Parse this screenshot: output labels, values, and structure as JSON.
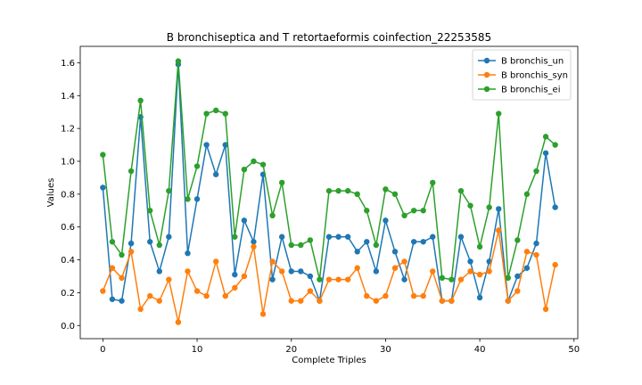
{
  "chart_data": {
    "type": "line",
    "title": "B bronchiseptica and T retortaeformis coinfection_22253585",
    "xlabel": "Complete Triples",
    "ylabel": "Values",
    "xlim": [
      -2.4,
      50.4
    ],
    "ylim": [
      -0.08,
      1.7
    ],
    "xticks": [
      0,
      10,
      20,
      30,
      40,
      50
    ],
    "yticks": [
      0.0,
      0.2,
      0.4,
      0.6,
      0.8,
      1.0,
      1.2,
      1.4,
      1.6
    ],
    "legend_position": "top-right",
    "grid": false,
    "series": [
      {
        "name": "B bronchis_un",
        "color": "#1f77b4",
        "values": [
          0.84,
          0.16,
          0.15,
          0.5,
          1.27,
          0.51,
          0.33,
          0.54,
          1.59,
          0.44,
          0.77,
          1.1,
          0.92,
          1.1,
          0.31,
          0.64,
          0.51,
          0.92,
          0.28,
          0.54,
          0.33,
          0.33,
          0.3,
          0.15,
          0.54,
          0.54,
          0.54,
          0.45,
          0.51,
          0.33,
          0.64,
          0.45,
          0.28,
          0.51,
          0.51,
          0.54,
          0.15,
          0.15,
          0.54,
          0.39,
          0.17,
          0.39,
          0.71,
          0.15,
          0.3,
          0.35,
          0.5,
          1.05,
          0.72
        ]
      },
      {
        "name": "B bronchis_syn",
        "color": "#ff7f0e",
        "values": [
          0.21,
          0.35,
          0.29,
          0.45,
          0.1,
          0.18,
          0.15,
          0.28,
          0.02,
          0.33,
          0.21,
          0.18,
          0.39,
          0.18,
          0.23,
          0.3,
          0.48,
          0.07,
          0.39,
          0.33,
          0.15,
          0.15,
          0.21,
          0.15,
          0.28,
          0.28,
          0.28,
          0.35,
          0.18,
          0.15,
          0.18,
          0.35,
          0.39,
          0.18,
          0.18,
          0.33,
          0.15,
          0.15,
          0.28,
          0.33,
          0.31,
          0.33,
          0.58,
          0.15,
          0.21,
          0.45,
          0.43,
          0.1,
          0.37
        ]
      },
      {
        "name": "B bronchis_ei",
        "color": "#2ca02c",
        "values": [
          1.04,
          0.51,
          0.43,
          0.94,
          1.37,
          0.7,
          0.49,
          0.82,
          1.61,
          0.77,
          0.97,
          1.29,
          1.31,
          1.29,
          0.54,
          0.95,
          1.0,
          0.98,
          0.67,
          0.87,
          0.49,
          0.49,
          0.52,
          0.28,
          0.82,
          0.82,
          0.82,
          0.8,
          0.7,
          0.49,
          0.83,
          0.8,
          0.67,
          0.7,
          0.7,
          0.87,
          0.29,
          0.28,
          0.82,
          0.73,
          0.48,
          0.72,
          1.29,
          0.29,
          0.52,
          0.8,
          0.94,
          1.15,
          1.1
        ]
      }
    ]
  }
}
